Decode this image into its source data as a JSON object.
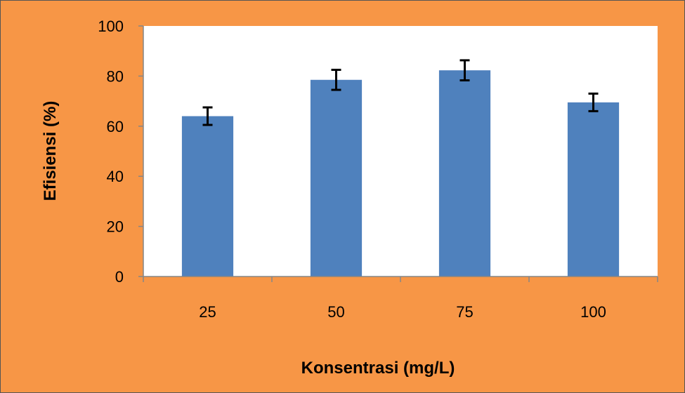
{
  "colors": {
    "background": "#F79646",
    "plot_area": "#FFFFFF",
    "bar": "#4F81BD",
    "axis": "#868686",
    "error_bar": "#000000"
  },
  "chart_data": {
    "type": "bar",
    "title": "",
    "xlabel": "Konsentrasi (mg/L)",
    "ylabel": "Efisiensi (%)",
    "categories": [
      "25",
      "50",
      "75",
      "100"
    ],
    "series": [
      {
        "values": [
          64,
          78.5,
          82.3,
          69.5
        ],
        "error": [
          3.5,
          4,
          4,
          3.5
        ]
      }
    ],
    "ylim": [
      0,
      100
    ],
    "yticks": [
      "0",
      "20",
      "40",
      "60",
      "80",
      "100"
    ],
    "grid": false,
    "legend": "none"
  }
}
